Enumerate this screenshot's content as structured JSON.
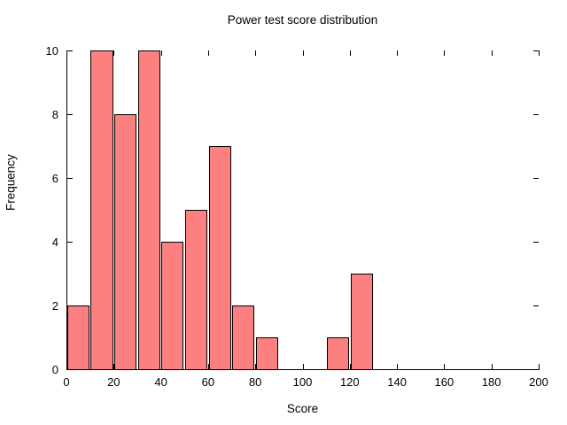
{
  "chart_data": {
    "type": "bar",
    "subtype": "histogram",
    "title": "Power test score distribution",
    "xlabel": "Score",
    "ylabel": "Frequency",
    "xlim": [
      0,
      200
    ],
    "ylim": [
      0,
      10
    ],
    "xticks": [
      0,
      20,
      40,
      60,
      80,
      100,
      120,
      140,
      160,
      180,
      200
    ],
    "yticks": [
      0,
      2,
      4,
      6,
      8,
      10
    ],
    "grid": false,
    "legend": "none",
    "tick_style": "inward, mirrored on top and right edges without border lines",
    "bin_width": 10,
    "bins": [
      {
        "start": 0,
        "end": 10,
        "count": 2
      },
      {
        "start": 10,
        "end": 20,
        "count": 10
      },
      {
        "start": 20,
        "end": 30,
        "count": 8
      },
      {
        "start": 30,
        "end": 40,
        "count": 10
      },
      {
        "start": 40,
        "end": 50,
        "count": 4
      },
      {
        "start": 50,
        "end": 60,
        "count": 5
      },
      {
        "start": 60,
        "end": 70,
        "count": 7
      },
      {
        "start": 70,
        "end": 80,
        "count": 2
      },
      {
        "start": 80,
        "end": 90,
        "count": 1
      },
      {
        "start": 90,
        "end": 100,
        "count": 0
      },
      {
        "start": 100,
        "end": 110,
        "count": 0
      },
      {
        "start": 110,
        "end": 120,
        "count": 1
      },
      {
        "start": 120,
        "end": 130,
        "count": 3
      }
    ],
    "colors": {
      "bar_fill": "#fc8080",
      "bar_edge": "#000000",
      "axis": "#000000",
      "text": "#000000",
      "background": "#ffffff"
    }
  }
}
